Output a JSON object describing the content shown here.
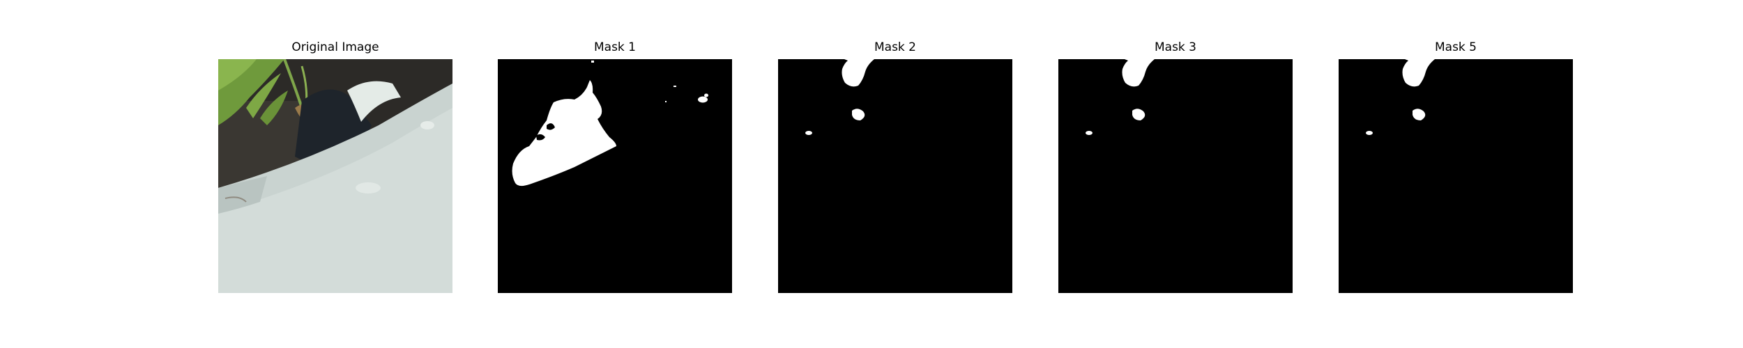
{
  "figure": {
    "panels": [
      {
        "title": "Original Image",
        "kind": "photo",
        "subject": "close-up of pale grey-green curved surface with leafy plant and dark shadow"
      },
      {
        "title": "Mask 1",
        "kind": "mask"
      },
      {
        "title": "Mask 2",
        "kind": "mask"
      },
      {
        "title": "Mask 3",
        "kind": "mask"
      },
      {
        "title": "Mask 5",
        "kind": "mask"
      }
    ]
  },
  "colors": {
    "mask_background": "#000000",
    "mask_foreground": "#ffffff",
    "surface": "#c9d3d0",
    "foliage": "#6f9a3c",
    "soil": "#2c2a27"
  }
}
